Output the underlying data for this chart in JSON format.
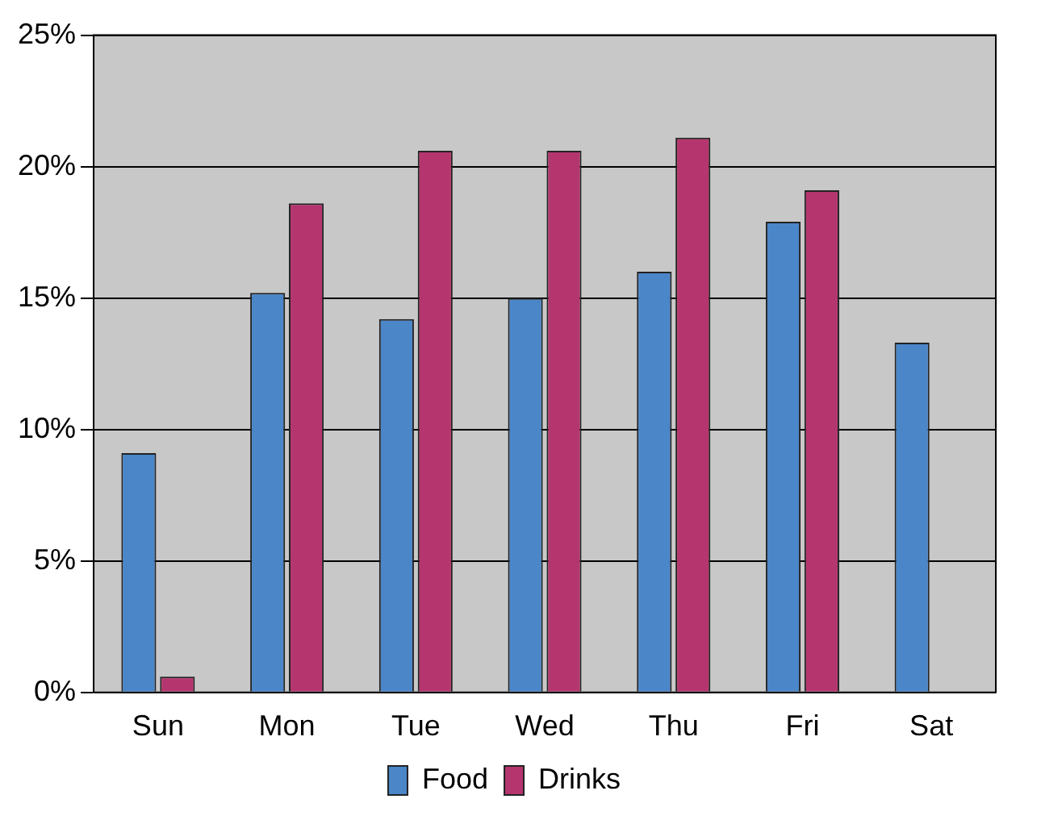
{
  "chart_data": {
    "type": "bar",
    "categories": [
      "Sun",
      "Mon",
      "Tue",
      "Wed",
      "Thu",
      "Fri",
      "Sat"
    ],
    "series": [
      {
        "name": "Food",
        "color": "#4a86c8",
        "values": [
          9.1,
          15.2,
          14.2,
          15.0,
          16.0,
          17.9,
          13.3
        ]
      },
      {
        "name": "Drinks",
        "color": "#b5366e",
        "values": [
          0.6,
          18.6,
          20.6,
          20.6,
          21.1,
          19.1,
          0
        ]
      }
    ],
    "ylim": [
      0,
      25
    ],
    "yticks": [
      {
        "value": 0,
        "label": "0%"
      },
      {
        "value": 5,
        "label": "5%"
      },
      {
        "value": 10,
        "label": "10%"
      },
      {
        "value": 15,
        "label": "15%"
      },
      {
        "value": 20,
        "label": "20%"
      },
      {
        "value": 25,
        "label": "25%"
      }
    ],
    "grid": "y",
    "legend": "bottom"
  }
}
